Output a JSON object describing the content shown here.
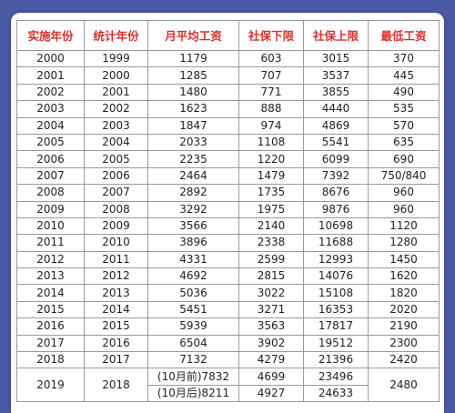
{
  "table": {
    "header": [
      "实施年份",
      "统计年份",
      "月平均工资",
      "社保下限",
      "社保上限",
      "最低工资"
    ],
    "rows": [
      [
        "2000",
        "1999",
        "1179",
        "603",
        "3015",
        "370"
      ],
      [
        "2001",
        "2000",
        "1285",
        "707",
        "3537",
        "445"
      ],
      [
        "2002",
        "2001",
        "1480",
        "771",
        "3855",
        "490"
      ],
      [
        "2003",
        "2002",
        "1623",
        "888",
        "4440",
        "535"
      ],
      [
        "2004",
        "2003",
        "1847",
        "974",
        "4869",
        "570"
      ],
      [
        "2005",
        "2004",
        "2033",
        "1108",
        "5541",
        "635"
      ],
      [
        "2006",
        "2005",
        "2235",
        "1220",
        "6099",
        "690"
      ],
      [
        "2007",
        "2006",
        "2464",
        "1479",
        "7392",
        "750/840"
      ],
      [
        "2008",
        "2007",
        "2892",
        "1735",
        "8676",
        "960"
      ],
      [
        "2009",
        "2008",
        "3292",
        "1975",
        "9876",
        "960"
      ],
      [
        "2010",
        "2009",
        "3566",
        "2140",
        "10698",
        "1120"
      ],
      [
        "2011",
        "2010",
        "3896",
        "2338",
        "11688",
        "1280"
      ],
      [
        "2012",
        "2011",
        "4331",
        "2599",
        "12993",
        "1450"
      ],
      [
        "2013",
        "2012",
        "4692",
        "2815",
        "14076",
        "1620"
      ],
      [
        "2014",
        "2013",
        "5036",
        "3022",
        "15108",
        "1820"
      ],
      [
        "2015",
        "2014",
        "5451",
        "3271",
        "16353",
        "2020"
      ],
      [
        "2016",
        "2015",
        "5939",
        "3563",
        "17817",
        "2190"
      ],
      [
        "2017",
        "2016",
        "6504",
        "3902",
        "19512",
        "2300"
      ],
      [
        "2018",
        "2017",
        "7132",
        "4279",
        "21396",
        "2420"
      ]
    ],
    "split_row": {
      "year": "2019",
      "stat_year": "2018",
      "min_wage": "2480",
      "sub_rows": [
        [
          "(10月前)7832",
          "4699",
          "23496"
        ],
        [
          "(10月后)8211",
          "4927",
          "24633"
        ]
      ]
    }
  }
}
